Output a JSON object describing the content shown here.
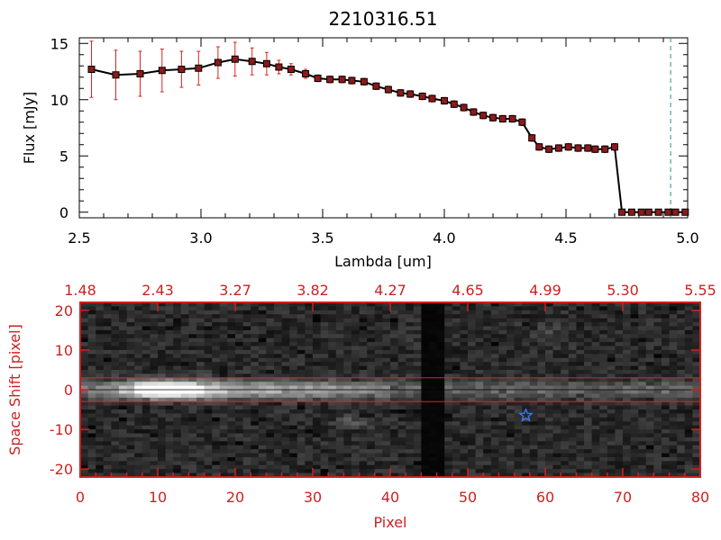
{
  "chart_data": [
    {
      "type": "line",
      "title": "2210316.51",
      "xlabel": "Lambda [um]",
      "ylabel": "Flux [mJy]",
      "xlim": [
        2.5,
        5.0
      ],
      "ylim": [
        -0.5,
        15.5
      ],
      "x_ticks": [
        "2.5",
        "3.0",
        "3.5",
        "4.0",
        "4.5",
        "5.0"
      ],
      "y_ticks": [
        "0",
        "5",
        "10",
        "15"
      ],
      "reference_line_x": 4.93,
      "reference_line_color": "#2f8f7f",
      "line_color": "#000000",
      "marker_color": "#8b1a1a",
      "errorbar_color": "#dd2222",
      "series": [
        {
          "x": [
            2.55,
            2.65,
            2.75,
            2.84,
            2.92,
            2.99,
            3.07,
            3.14,
            3.21,
            3.27,
            3.32,
            3.37,
            3.43,
            3.48,
            3.53,
            3.58,
            3.62,
            3.67,
            3.72,
            3.77,
            3.82,
            3.86,
            3.91,
            3.95,
            4.0,
            4.04,
            4.08,
            4.12,
            4.16,
            4.2,
            4.24,
            4.28,
            4.32,
            4.36,
            4.39,
            4.43,
            4.47,
            4.51,
            4.55,
            4.59,
            4.62,
            4.66,
            4.7,
            4.73,
            4.77,
            4.81,
            4.84,
            4.88,
            4.92,
            4.95,
            4.99
          ],
          "y": [
            12.7,
            12.2,
            12.3,
            12.6,
            12.7,
            12.8,
            13.3,
            13.6,
            13.4,
            13.2,
            12.9,
            12.7,
            12.3,
            11.9,
            11.8,
            11.8,
            11.7,
            11.6,
            11.2,
            10.9,
            10.6,
            10.5,
            10.3,
            10.1,
            9.9,
            9.6,
            9.3,
            8.9,
            8.6,
            8.4,
            8.3,
            8.3,
            8.0,
            6.6,
            5.8,
            5.6,
            5.7,
            5.8,
            5.7,
            5.7,
            5.6,
            5.6,
            5.8,
            0.0,
            0.0,
            0.0,
            0.0,
            0.0,
            0.0,
            0.0,
            0.0
          ],
          "yerr": [
            2.5,
            2.2,
            2.0,
            1.9,
            1.6,
            1.5,
            1.4,
            1.5,
            1.2,
            1.0,
            0.6,
            0.5,
            0.4,
            0.3,
            0.3,
            0.3,
            0.3,
            0.3,
            0.3,
            0.3,
            0.3,
            0.3,
            0.3,
            0.3,
            0.3,
            0.3,
            0.3,
            0.3,
            0.3,
            0.3,
            0.3,
            0.3,
            0.3,
            0.3,
            0.3,
            0.3,
            0.3,
            0.3,
            0.3,
            0.3,
            0.3,
            0.3,
            0.3,
            0.0,
            0.0,
            0.0,
            0.0,
            0.0,
            0.0,
            0.0,
            0.0
          ]
        }
      ]
    },
    {
      "type": "heatmap",
      "xlabel": "Pixel",
      "ylabel": "Space Shift [pixel]",
      "xlim": [
        0,
        80
      ],
      "ylim": [
        -22,
        22
      ],
      "x_ticks": [
        "0",
        "10",
        "20",
        "30",
        "40",
        "50",
        "60",
        "70",
        "80"
      ],
      "y_ticks": [
        "-20",
        "-10",
        "0",
        "10",
        "20"
      ],
      "top_ticks": [
        "1.48",
        "2.43",
        "3.27",
        "3.82",
        "4.27",
        "4.65",
        "4.99",
        "5.30",
        "5.55"
      ],
      "axis_color": "#cc2222",
      "aperture_lines_y": [
        3,
        -3
      ],
      "aperture_line_color": "#dd2222",
      "trace_center_y": 0,
      "dark_column_range": [
        43.5,
        47.5
      ],
      "source_marker": {
        "x": 57.5,
        "y": -6.5,
        "symbol": "star",
        "color": "#3a78ff"
      }
    }
  ]
}
